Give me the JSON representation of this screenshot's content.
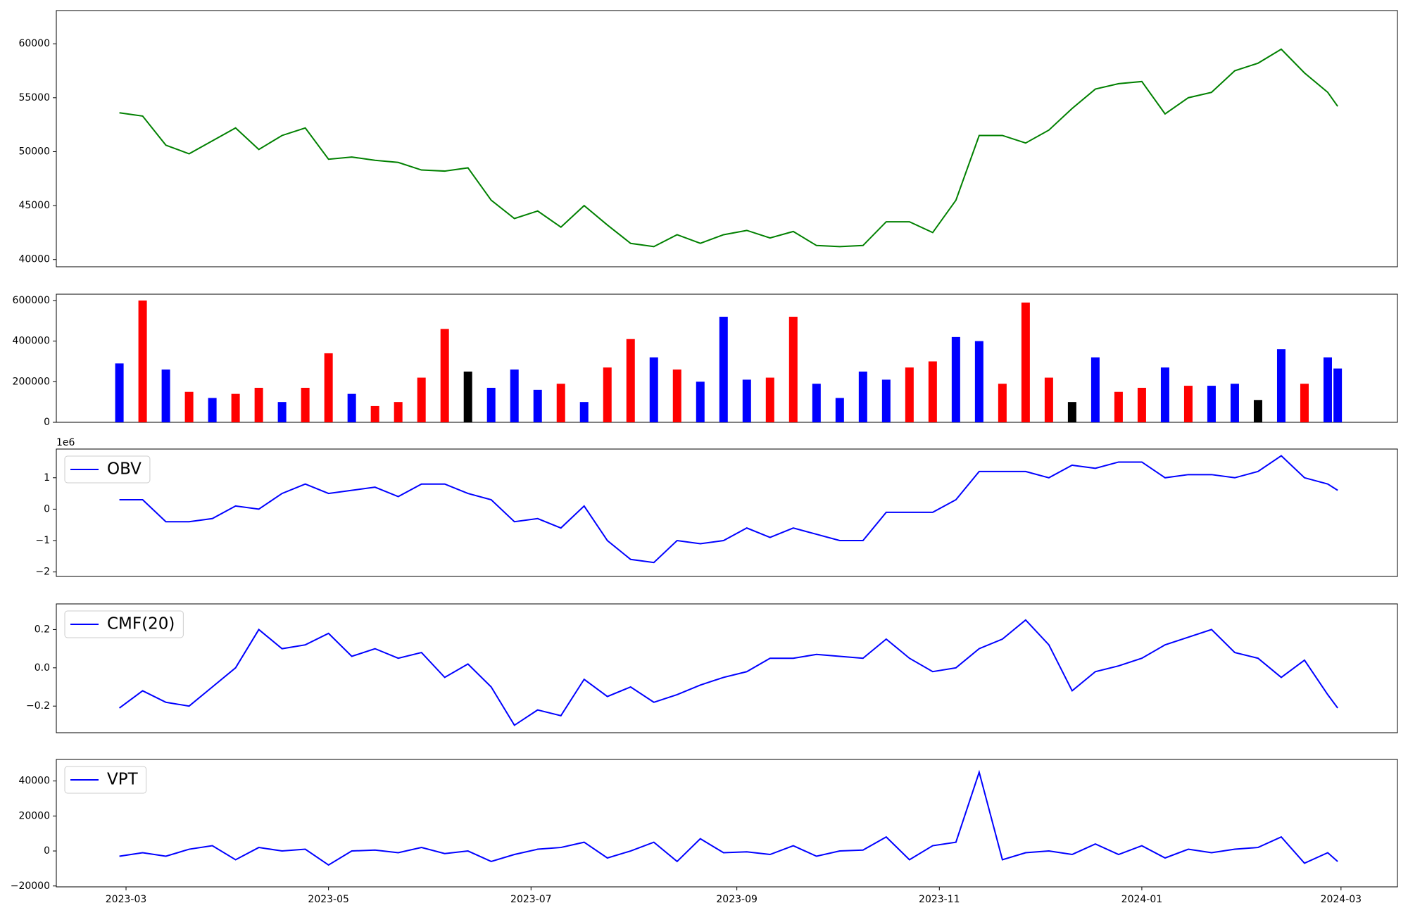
{
  "chart_data": {
    "x": [
      "2023-02-27",
      "2023-03-06",
      "2023-03-13",
      "2023-03-20",
      "2023-03-27",
      "2023-04-03",
      "2023-04-10",
      "2023-04-17",
      "2023-04-24",
      "2023-05-01",
      "2023-05-08",
      "2023-05-15",
      "2023-05-22",
      "2023-05-29",
      "2023-06-05",
      "2023-06-12",
      "2023-06-19",
      "2023-06-26",
      "2023-07-03",
      "2023-07-10",
      "2023-07-17",
      "2023-07-24",
      "2023-07-31",
      "2023-08-07",
      "2023-08-14",
      "2023-08-21",
      "2023-08-28",
      "2023-09-04",
      "2023-09-11",
      "2023-09-18",
      "2023-09-25",
      "2023-10-02",
      "2023-10-09",
      "2023-10-16",
      "2023-10-23",
      "2023-10-30",
      "2023-11-06",
      "2023-11-13",
      "2023-11-20",
      "2023-11-27",
      "2023-12-04",
      "2023-12-11",
      "2023-12-18",
      "2023-12-25",
      "2024-01-01",
      "2024-01-08",
      "2024-01-15",
      "2024-01-22",
      "2024-01-29",
      "2024-02-05",
      "2024-02-12",
      "2024-02-19",
      "2024-02-26",
      "2024-02-29"
    ],
    "xlim": [
      "2023-02-08",
      "2024-03-18"
    ],
    "xticks": [
      {
        "value": "2023-03-01",
        "label": "2023-03"
      },
      {
        "value": "2023-05-01",
        "label": "2023-05"
      },
      {
        "value": "2023-07-01",
        "label": "2023-07"
      },
      {
        "value": "2023-09-01",
        "label": "2023-09"
      },
      {
        "value": "2023-11-01",
        "label": "2023-11"
      },
      {
        "value": "2024-01-01",
        "label": "2024-01"
      },
      {
        "value": "2024-03-01",
        "label": "2024-03"
      }
    ],
    "panels": [
      {
        "type": "line",
        "ylim": [
          39330,
          63080
        ],
        "yticks": [
          40000,
          45000,
          50000,
          55000,
          60000
        ],
        "series": [
          {
            "color": "green",
            "values": [
              53600,
              53300,
              50600,
              49800,
              51000,
              52200,
              50200,
              51500,
              52200,
              49300,
              49500,
              49200,
              49000,
              48300,
              48200,
              48500,
              45500,
              43800,
              44500,
              43000,
              45000,
              43200,
              41500,
              41200,
              42300,
              41500,
              42300,
              42700,
              42000,
              42600,
              41300,
              41200,
              41300,
              43500,
              43500,
              42500,
              45500,
              51500,
              51500,
              50800,
              52000,
              54000,
              55800,
              56300,
              56500,
              53500,
              55000,
              55500,
              57500,
              58200,
              59500,
              57300,
              55500,
              54200
            ]
          }
        ]
      },
      {
        "type": "bar",
        "ylim": [
          0,
          631000
        ],
        "yticks": [
          0,
          200000,
          400000,
          600000
        ],
        "values": [
          290000,
          600000,
          260000,
          150000,
          120000,
          140000,
          170000,
          100000,
          170000,
          340000,
          140000,
          80000,
          100000,
          220000,
          460000,
          250000,
          170000,
          260000,
          160000,
          190000,
          100000,
          270000,
          410000,
          320000,
          260000,
          200000,
          520000,
          210000,
          220000,
          520000,
          190000,
          120000,
          250000,
          210000,
          270000,
          300000,
          420000,
          400000,
          190000,
          590000,
          220000,
          100000,
          320000,
          150000,
          170000,
          270000,
          180000,
          180000,
          190000,
          110000,
          360000,
          190000,
          320000,
          265000
        ],
        "colors": [
          "blue",
          "red",
          "blue",
          "red",
          "blue",
          "red",
          "red",
          "blue",
          "red",
          "red",
          "blue",
          "red",
          "red",
          "red",
          "red",
          "black",
          "blue",
          "blue",
          "blue",
          "red",
          "blue",
          "red",
          "red",
          "blue",
          "red",
          "blue",
          "blue",
          "blue",
          "red",
          "red",
          "blue",
          "blue",
          "blue",
          "blue",
          "red",
          "red",
          "blue",
          "blue",
          "red",
          "red",
          "red",
          "black",
          "blue",
          "red",
          "red",
          "blue",
          "red",
          "blue",
          "blue",
          "black",
          "blue",
          "red",
          "blue",
          "blue"
        ]
      },
      {
        "type": "line",
        "ylim": [
          -2143000,
          1914000
        ],
        "yticks": [
          {
            "value": -2000000,
            "label": "−2"
          },
          {
            "value": -1000000,
            "label": "−1"
          },
          0,
          {
            "value": 1000000,
            "label": "1"
          }
        ],
        "y_offset_label": "1e6",
        "legend": "upper left",
        "series": [
          {
            "name": "OBV",
            "color": "blue",
            "values": [
              300000,
              300000,
              -400000,
              -400000,
              -300000,
              100000,
              0,
              500000,
              800000,
              500000,
              600000,
              700000,
              400000,
              800000,
              800000,
              500000,
              300000,
              -400000,
              -300000,
              -600000,
              100000,
              -1000000,
              -1600000,
              -1700000,
              -1000000,
              -1100000,
              -1000000,
              -600000,
              -900000,
              -600000,
              -800000,
              -1000000,
              -1000000,
              -100000,
              -100000,
              -100000,
              300000,
              1200000,
              1200000,
              1200000,
              1000000,
              1400000,
              1300000,
              1500000,
              1500000,
              1000000,
              1100000,
              1100000,
              1000000,
              1200000,
              1700000,
              1000000,
              800000,
              600000
            ]
          }
        ]
      },
      {
        "type": "line",
        "ylim": [
          -0.339,
          0.334
        ],
        "yticks": [
          {
            "value": -0.2,
            "label": "−0.2"
          },
          {
            "value": 0,
            "label": "0.0"
          },
          0.2
        ],
        "legend": "upper left",
        "series": [
          {
            "name": "CMF(20)",
            "color": "blue",
            "values": [
              -0.21,
              -0.12,
              -0.18,
              -0.2,
              -0.1,
              0,
              0.2,
              0.1,
              0.12,
              0.18,
              0.06,
              0.1,
              0.05,
              0.08,
              -0.05,
              0.02,
              -0.1,
              -0.3,
              -0.22,
              -0.25,
              -0.06,
              -0.15,
              -0.1,
              -0.18,
              -0.14,
              -0.09,
              -0.05,
              -0.02,
              0.05,
              0.05,
              0.07,
              0.06,
              0.05,
              0.15,
              0.05,
              -0.02,
              0,
              0.1,
              0.15,
              0.25,
              0.12,
              -0.12,
              -0.02,
              0.01,
              0.05,
              0.12,
              0.16,
              0.2,
              0.08,
              0.05,
              -0.05,
              0.04,
              -0.14,
              -0.21
            ]
          }
        ]
      },
      {
        "type": "line",
        "ylim": [
          -20500,
          52300
        ],
        "yticks": [
          {
            "value": -20000,
            "label": "−20000"
          },
          0,
          20000,
          40000
        ],
        "legend": "upper left",
        "series": [
          {
            "name": "VPT",
            "color": "blue",
            "values": [
              -3000,
              -1000,
              -3000,
              1000,
              3000,
              -5000,
              2000,
              0,
              1000,
              -8000,
              0,
              500,
              -1000,
              2000,
              -1500,
              0,
              -6000,
              -2000,
              1000,
              2000,
              5000,
              -4000,
              0,
              5000,
              -6000,
              7000,
              -1000,
              -500,
              -2000,
              3000,
              -3000,
              0,
              500,
              8000,
              -5000,
              3000,
              5000,
              45000,
              -5000,
              -1000,
              0,
              -2000,
              4000,
              -2000,
              3000,
              -4000,
              1000,
              -1000,
              1000,
              2000,
              8000,
              -7000,
              -1000,
              -6000
            ]
          }
        ]
      }
    ]
  }
}
